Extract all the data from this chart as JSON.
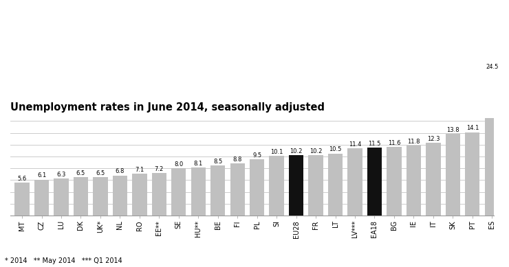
{
  "categories": [
    "MT",
    "CZ",
    "LU",
    "DK",
    "UK*",
    "NL",
    "RO",
    "EE**",
    "SE",
    "HU**",
    "BE",
    "FI",
    "PL",
    "SI",
    "EU28",
    "FR",
    "LT",
    "LV***",
    "EA18",
    "BG",
    "IE",
    "IT",
    "SK",
    "PT",
    "ES"
  ],
  "values": [
    5.6,
    6.1,
    6.3,
    6.5,
    6.5,
    6.8,
    7.1,
    7.2,
    8.0,
    8.1,
    8.5,
    8.8,
    9.5,
    10.1,
    10.2,
    10.2,
    10.5,
    11.4,
    11.5,
    11.6,
    11.8,
    12.3,
    13.8,
    14.1,
    24.5
  ],
  "bar_colors": [
    "#c0c0c0",
    "#c0c0c0",
    "#c0c0c0",
    "#c0c0c0",
    "#c0c0c0",
    "#c0c0c0",
    "#c0c0c0",
    "#c0c0c0",
    "#c0c0c0",
    "#c0c0c0",
    "#c0c0c0",
    "#c0c0c0",
    "#c0c0c0",
    "#c0c0c0",
    "#111111",
    "#c0c0c0",
    "#c0c0c0",
    "#c0c0c0",
    "#111111",
    "#c0c0c0",
    "#c0c0c0",
    "#c0c0c0",
    "#c0c0c0",
    "#c0c0c0",
    "#c0c0c0"
  ],
  "title": "Unemployment rates in June 2014, seasonally adjusted",
  "footnote": "* 2014   ** May 2014   *** Q1 2014",
  "ylim": [
    0,
    16.5
  ],
  "value_fontsize": 6.0,
  "label_fontsize": 7.0,
  "title_fontsize": 10.5,
  "background_color": "#ffffff",
  "grid_color": "#cccccc",
  "grid_y_vals": [
    2,
    4,
    6,
    8,
    10,
    12,
    14,
    16
  ]
}
